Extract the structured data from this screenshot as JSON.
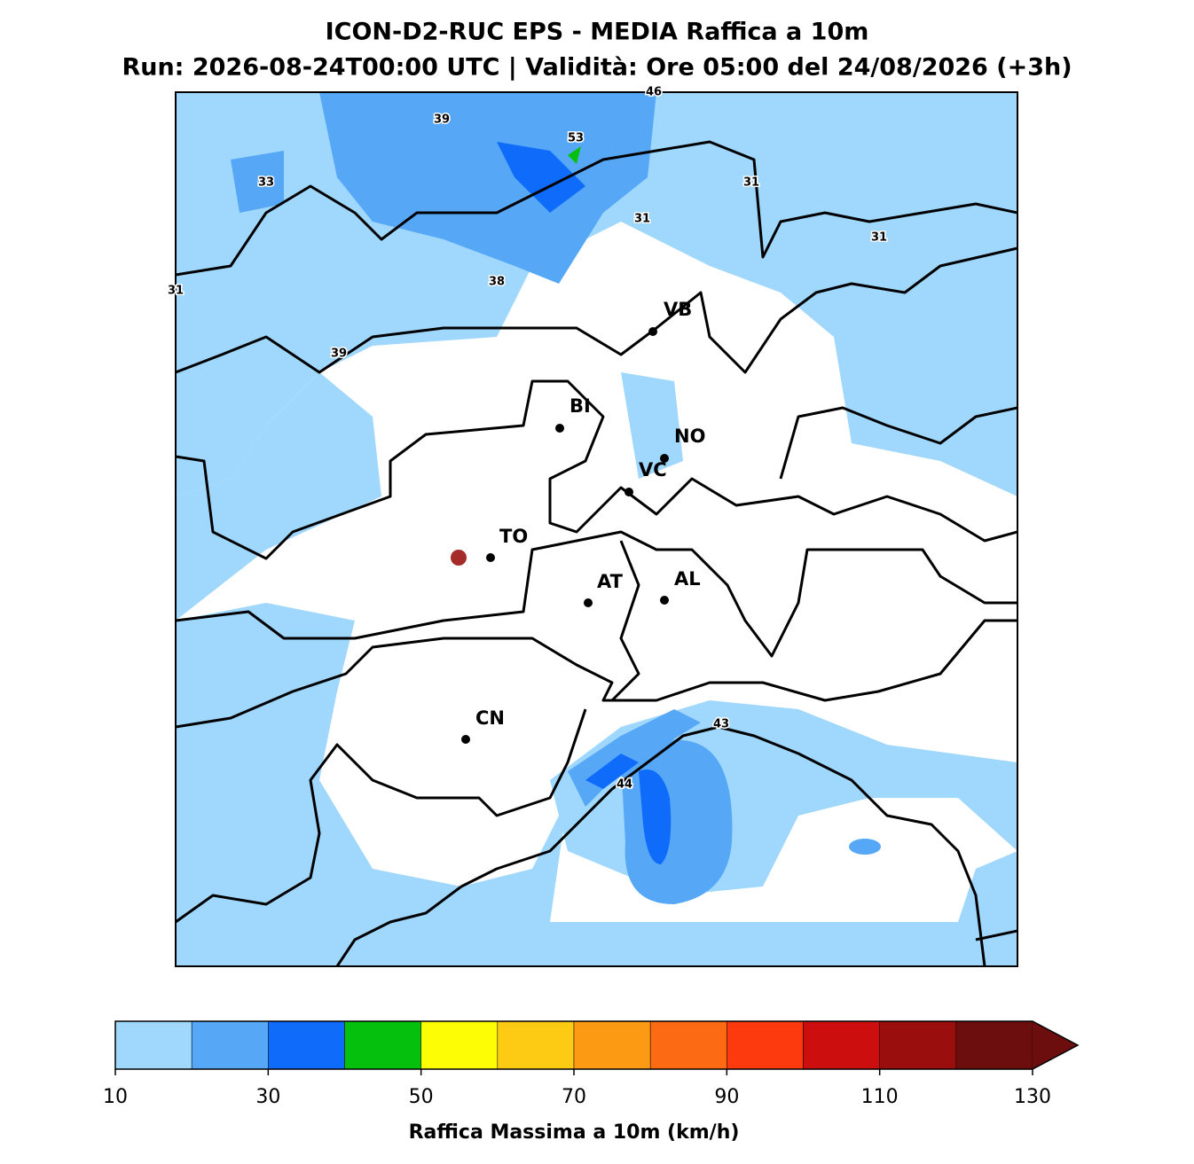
{
  "title": [
    "ICON-D2-RUC EPS - MEDIA Raffica a 10m",
    "Run: 2026-08-24T00:00 UTC | Validità: Ore 05:00 del 24/08/2026 (+3h)"
  ],
  "cities": [
    "VB",
    "BI",
    "NO",
    "VC",
    "TO",
    "AT",
    "AL",
    "CN"
  ],
  "contour_labels": [
    "46",
    "39",
    "53",
    "33",
    "31",
    "31",
    "31",
    "31",
    "38",
    "39",
    "43",
    "44"
  ],
  "colorbar": {
    "bins": [
      10,
      20,
      30,
      40,
      50,
      60,
      70,
      80,
      90,
      100,
      110,
      120,
      130
    ],
    "colors": [
      "#9fd7fd",
      "#56a8f6",
      "#0f6bfa",
      "#05c10e",
      "#fdfd05",
      "#fdcb14",
      "#fd9a14",
      "#fd6a14",
      "#fd3a0e",
      "#cc0e0e",
      "#9a0e0e",
      "#6c0e0e"
    ],
    "extend": "max",
    "ticks": [
      10,
      30,
      50,
      70,
      90,
      110,
      130
    ],
    "label": "Raffica Massima a 10m (km/h)"
  }
}
